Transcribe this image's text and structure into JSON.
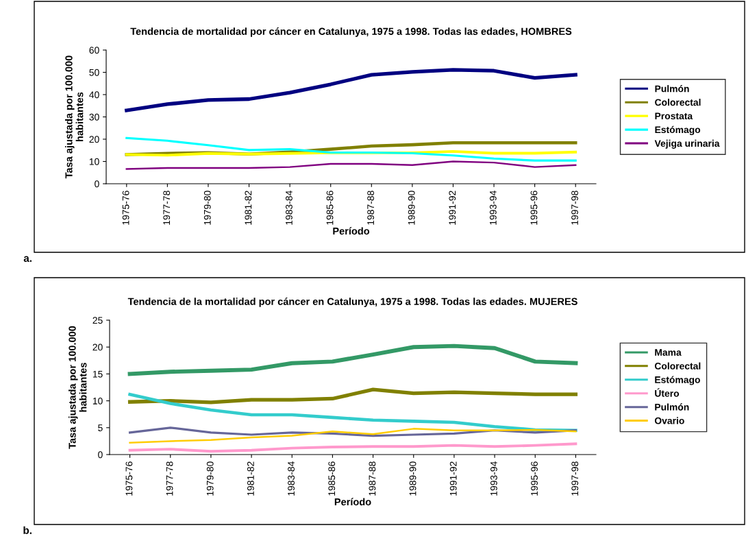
{
  "chart_data": [
    {
      "type": "line",
      "title": "Tendencia de mortalidad por cáncer en Catalunya, 1975 a 1998. Todas las edades, HOMBRES",
      "xlabel": "Período",
      "ylabel": "Tasa ajustada por 100.000\nhabitantes",
      "categories": [
        "1975-76",
        "1977-78",
        "1979-80",
        "1981-82",
        "1983-84",
        "1985-86",
        "1987-88",
        "1989-90",
        "1991-92",
        "1993-94",
        "1995-96",
        "1997-98"
      ],
      "series": [
        {
          "name": "Pulmón",
          "color": "#000080",
          "values": [
            32.9,
            35.7,
            37.6,
            38.0,
            40.9,
            44.6,
            48.9,
            50.2,
            51.1,
            50.7,
            47.5,
            48.9
          ]
        },
        {
          "name": "Colorectal",
          "color": "#808000",
          "values": [
            13.1,
            13.6,
            13.9,
            13.3,
            14.2,
            15.5,
            16.9,
            17.5,
            18.4,
            18.4,
            18.4,
            18.4
          ]
        },
        {
          "name": "Prostata",
          "color": "#ffff00",
          "values": [
            13.1,
            12.8,
            13.6,
            13.3,
            13.6,
            13.9,
            13.9,
            13.9,
            14.5,
            13.7,
            13.7,
            14.2
          ]
        },
        {
          "name": "Estómago",
          "color": "#00ffff",
          "values": [
            20.5,
            19.3,
            17.3,
            15.1,
            15.5,
            14.0,
            14.0,
            13.7,
            12.7,
            11.3,
            10.4,
            10.4
          ]
        },
        {
          "name": "Vejiga urinaria",
          "color": "#800080",
          "values": [
            6.6,
            7.1,
            7.1,
            7.1,
            7.5,
            8.9,
            8.9,
            8.4,
            10.0,
            9.5,
            7.5,
            8.4
          ]
        }
      ],
      "ylim": [
        0,
        60
      ],
      "yticks": [
        0,
        10,
        20,
        30,
        40,
        50,
        60
      ],
      "legend": "right",
      "grid": false,
      "annotations": [
        "a."
      ]
    },
    {
      "type": "line",
      "title": "Tendencia de la mortalidad por cáncer en Catalunya, 1975 a 1998. Todas las edades. MUJERES",
      "xlabel": "Período",
      "ylabel": "Tasa ajustada por 100.000\nhabitantes",
      "categories": [
        "1975-76",
        "1977-78",
        "1979-80",
        "1981-82",
        "1983-84",
        "1985-86",
        "1987-88",
        "1989-90",
        "1991-92",
        "1993-94",
        "1995-96",
        "1997-98"
      ],
      "series": [
        {
          "name": "Mama",
          "color": "#339966",
          "values": [
            15.0,
            15.4,
            15.6,
            15.8,
            17.0,
            17.3,
            18.6,
            20.0,
            20.2,
            19.8,
            17.3,
            17.0
          ]
        },
        {
          "name": "Colorectal",
          "color": "#808000",
          "values": [
            9.8,
            10.0,
            9.7,
            10.2,
            10.2,
            10.4,
            12.1,
            11.4,
            11.6,
            11.4,
            11.2,
            11.2
          ]
        },
        {
          "name": "Estómago",
          "color": "#33cccc",
          "values": [
            11.2,
            9.5,
            8.3,
            7.4,
            7.4,
            6.9,
            6.4,
            6.2,
            6.0,
            5.2,
            4.6,
            4.5
          ]
        },
        {
          "name": "Útero",
          "color": "#ff99cc",
          "values": [
            0.8,
            1.0,
            0.6,
            0.8,
            1.2,
            1.4,
            1.5,
            1.5,
            1.7,
            1.5,
            1.7,
            2.0
          ]
        },
        {
          "name": "Pulmón",
          "color": "#666699",
          "values": [
            4.1,
            5.0,
            4.1,
            3.7,
            4.1,
            3.9,
            3.5,
            3.7,
            3.9,
            4.5,
            4.1,
            4.5
          ]
        },
        {
          "name": "Ovario",
          "color": "#ffcc00",
          "values": [
            2.2,
            2.5,
            2.7,
            3.2,
            3.5,
            4.3,
            3.8,
            4.8,
            4.5,
            4.5,
            4.6,
            4.3
          ]
        }
      ],
      "ylim": [
        0,
        25
      ],
      "yticks": [
        0,
        5,
        10,
        15,
        20,
        25
      ],
      "legend": "right",
      "grid": false,
      "annotations": [
        "b."
      ]
    }
  ]
}
